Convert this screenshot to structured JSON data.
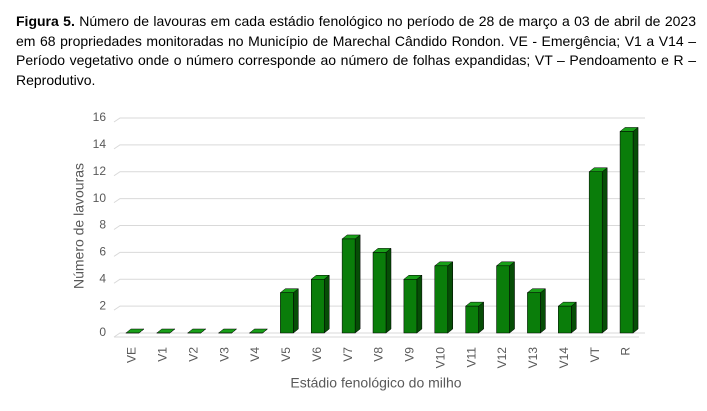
{
  "chart_data": {
    "type": "bar",
    "figure_label": "Figura 5.",
    "title": "Número de lavouras em cada estádio fenológico no período de 28 de março a 03 de abril de 2023 em 68 propriedades monitoradas no Município de Marechal Cândido Rondon. VE - Emergência; V1 a V14 – Período vegetativo onde o número corresponde ao número de folhas expandidas; VT – Pendoamento e R – Reprodutivo.",
    "x_label": "Estádio fenológico do milho",
    "y_label": "Número de lavouras",
    "categories": [
      "VE",
      "V1",
      "V2",
      "V3",
      "V4",
      "V5",
      "V6",
      "V7",
      "V8",
      "V9",
      "V10",
      "V11",
      "V12",
      "V13",
      "V14",
      "VT",
      "R"
    ],
    "values": [
      0,
      0,
      0,
      0,
      0,
      3,
      4,
      7,
      6,
      4,
      5,
      2,
      5,
      3,
      2,
      12,
      15
    ],
    "color": "#0a7d0a",
    "ylim": [
      0,
      16
    ],
    "yticks": [
      0,
      2,
      4,
      6,
      8,
      10,
      12,
      14,
      16
    ],
    "grid": true
  }
}
